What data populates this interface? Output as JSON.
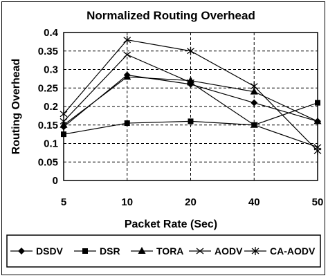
{
  "chart_data": {
    "type": "line",
    "title": "Normalized Routing Overhead",
    "xlabel": "Packet Rate (Sec)",
    "ylabel": "Routing Overhead",
    "categories": [
      "5",
      "10",
      "20",
      "40",
      "50"
    ],
    "y_ticks": [
      "0",
      "0.05",
      "0.1",
      "0.15",
      "0.2",
      "0.25",
      "0.3",
      "0.35",
      "0.4"
    ],
    "ylim": [
      0,
      0.4
    ],
    "grid": "dashed, both axes",
    "legend_position": "bottom",
    "series": [
      {
        "name": "DSDV",
        "marker": "diamond",
        "values": [
          0.145,
          0.285,
          0.26,
          0.21,
          0.16
        ]
      },
      {
        "name": "DSR",
        "marker": "square",
        "values": [
          0.125,
          0.155,
          0.16,
          0.15,
          0.21
        ]
      },
      {
        "name": "TORA",
        "marker": "triangle",
        "values": [
          0.15,
          0.28,
          0.27,
          0.24,
          0.16
        ]
      },
      {
        "name": "AODV",
        "marker": "x",
        "values": [
          0.16,
          0.34,
          0.265,
          0.15,
          0.09
        ]
      },
      {
        "name": "CA-AODV",
        "marker": "star",
        "values": [
          0.18,
          0.38,
          0.35,
          0.255,
          0.08
        ]
      }
    ],
    "colors": {
      "line": "#000000",
      "grid": "#000000",
      "background": "#ffffff"
    }
  }
}
